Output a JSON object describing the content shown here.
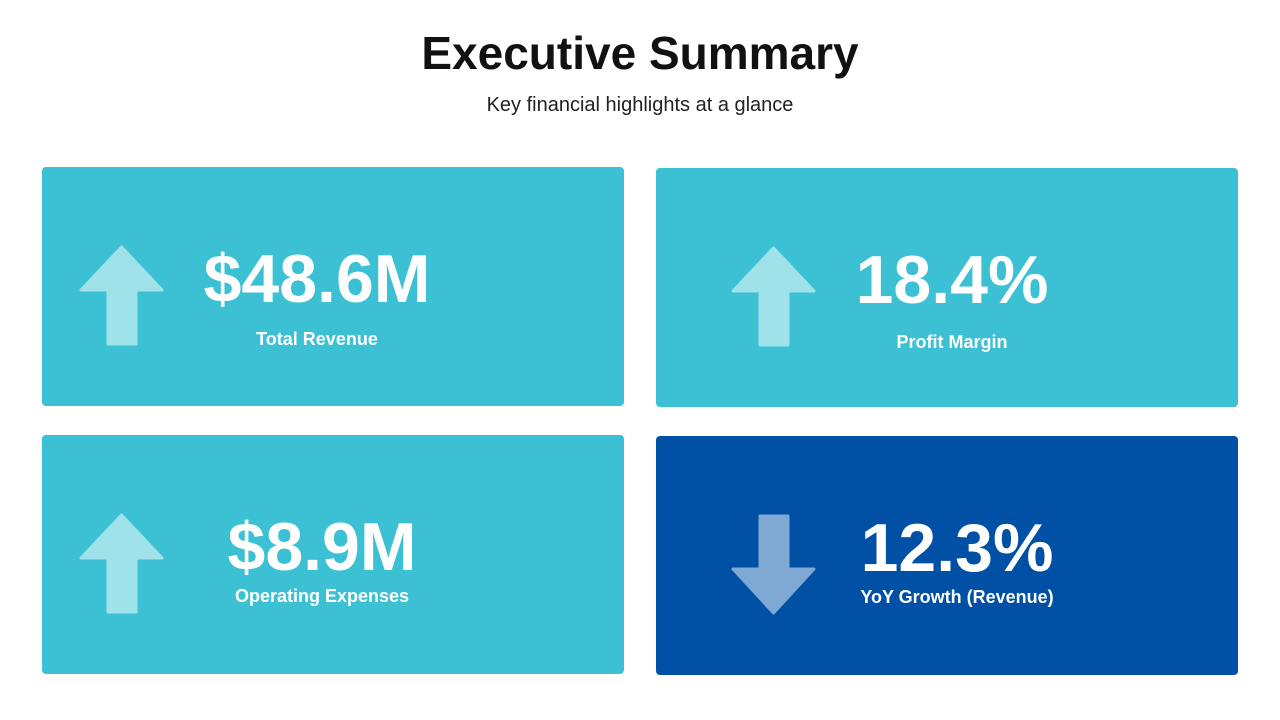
{
  "header": {
    "title": "Executive Summary",
    "subtitle": "Key financial highlights at a glance"
  },
  "cards": [
    {
      "value": "$48.6M",
      "label": "Total Revenue",
      "trend": "up",
      "color": "#3bc1d3",
      "arrow_color": "#a0e2ea"
    },
    {
      "value": "18.4%",
      "label": "Profit Margin",
      "trend": "up",
      "color": "#3bc1d3",
      "arrow_color": "#a0e2ea"
    },
    {
      "value": "$8.9M",
      "label": "Operating Expenses",
      "trend": "up",
      "color": "#3bc1d3",
      "arrow_color": "#a0e2ea"
    },
    {
      "value": "12.3%",
      "label": "YoY Growth (Revenue)",
      "trend": "down",
      "color": "#0051a5",
      "arrow_color": "#7fa8d3"
    }
  ]
}
